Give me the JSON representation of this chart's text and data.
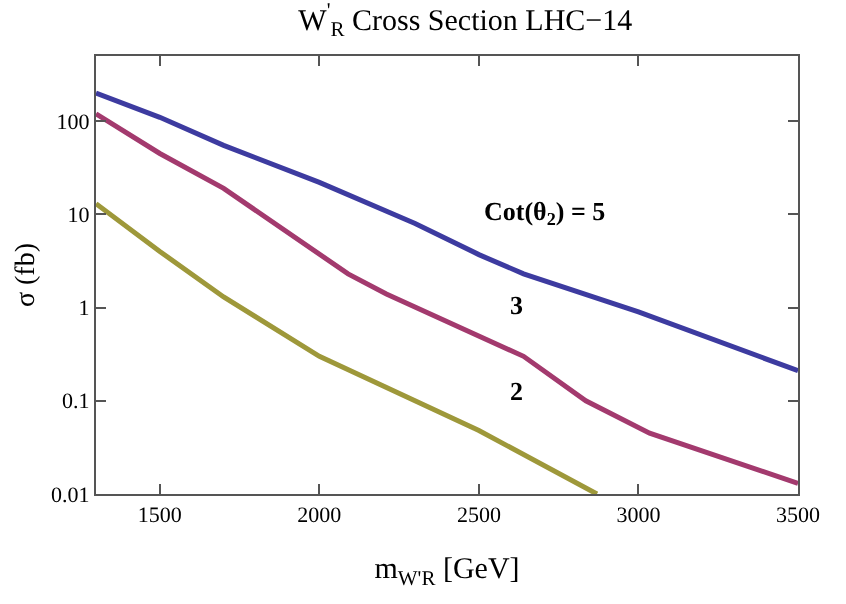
{
  "chart_data": {
    "type": "line",
    "title": "W$^{'}$$_{R}$ Cross Section LHC−14",
    "xlabel": "m$_{W'R}$ [GeV]",
    "ylabel": "σ (fb)",
    "log": "y",
    "xlim": [
      1300,
      3500
    ],
    "xticks": [
      1500,
      2000,
      2500,
      3000,
      3500
    ],
    "ylim": [
      0.01,
      500
    ],
    "yticks": [
      {
        "value": 0.01,
        "label": "0.01"
      },
      {
        "value": 0.1,
        "label": "0.1"
      },
      {
        "value": 1,
        "label": "1"
      },
      {
        "value": 10,
        "label": "10"
      },
      {
        "value": 100,
        "label": "100"
      }
    ],
    "marker": "none",
    "line_style": "solid",
    "series": [
      {
        "color": "#3d3ba0",
        "x": [
          1300,
          1500,
          1700,
          2000,
          2300,
          2500,
          2640,
          3000,
          3500
        ],
        "values": [
          200,
          110,
          55,
          22,
          8,
          3.7,
          2.3,
          0.9,
          0.21
        ]
      },
      {
        "color": "#a33a6e",
        "x": [
          1300,
          1500,
          1700,
          2090,
          2210,
          2640,
          2835,
          3035,
          3500
        ],
        "values": [
          120,
          45,
          19,
          2.3,
          1.4,
          0.3,
          0.1,
          0.045,
          0.013
        ]
      },
      {
        "color": "#9e983a",
        "x": [
          1300,
          1500,
          1700,
          2000,
          2500,
          2870
        ],
        "values": [
          13,
          4,
          1.3,
          0.3,
          0.048,
          0.01
        ]
      }
    ],
    "annotations": [
      "Cot(θ$_{2}$) = 5",
      "3",
      "2"
    ]
  }
}
